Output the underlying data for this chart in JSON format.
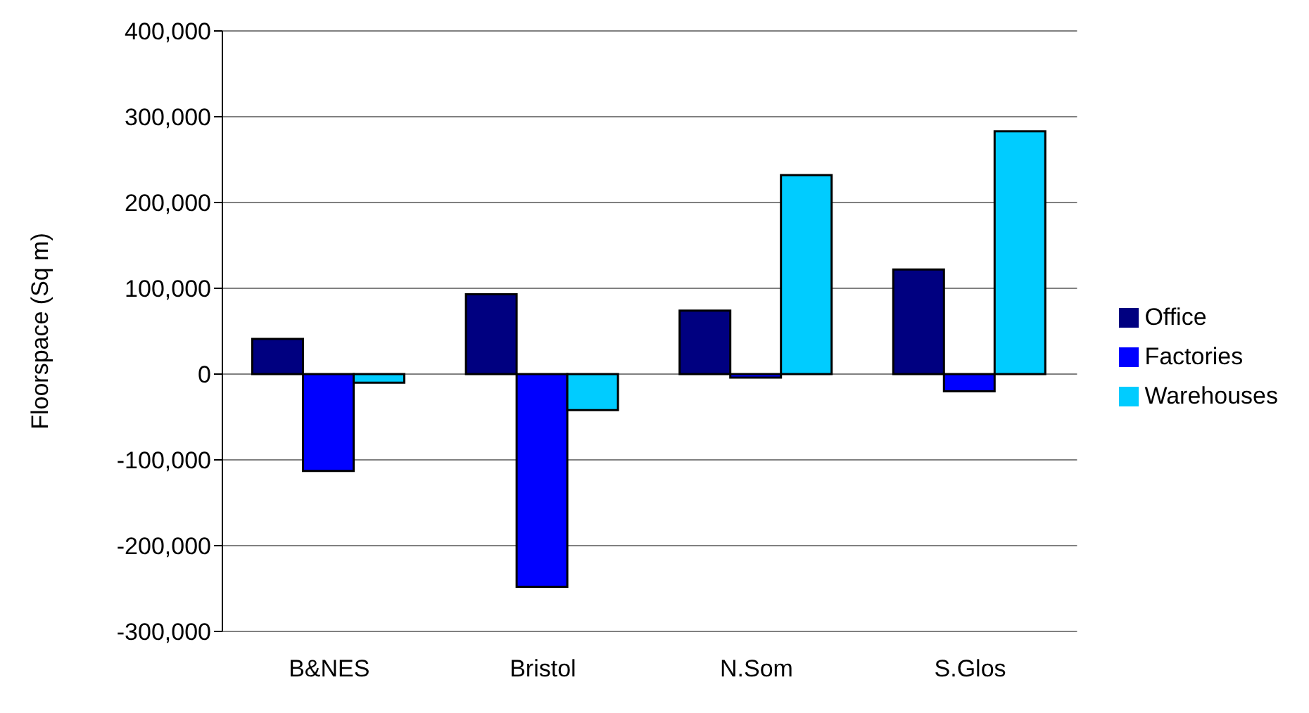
{
  "chart_data": {
    "type": "bar",
    "ylabel": "Floorspace (Sq m)",
    "categories": [
      "B&NES",
      "Bristol",
      "N.Som",
      "S.Glos"
    ],
    "series": [
      {
        "name": "Office",
        "color": "#000080",
        "values": [
          41000,
          93000,
          74000,
          122000
        ]
      },
      {
        "name": "Factories",
        "color": "#0000ff",
        "values": [
          -113000,
          -248000,
          -4000,
          -20000
        ]
      },
      {
        "name": "Warehouses",
        "color": "#00ccff",
        "values": [
          -10000,
          -42000,
          232000,
          283000
        ]
      }
    ],
    "ylim": [
      -300000,
      400000
    ],
    "yticks": [
      {
        "value": -300000,
        "label": "-300,000"
      },
      {
        "value": -200000,
        "label": "-200,000"
      },
      {
        "value": -100000,
        "label": "-100,000"
      },
      0,
      {
        "value": 100000,
        "label": "100,000"
      },
      {
        "value": 200000,
        "label": "200,000"
      },
      {
        "value": 300000,
        "label": "300,000"
      },
      {
        "value": 400000,
        "label": "400,000"
      }
    ],
    "grid": "y",
    "legend": "right"
  }
}
